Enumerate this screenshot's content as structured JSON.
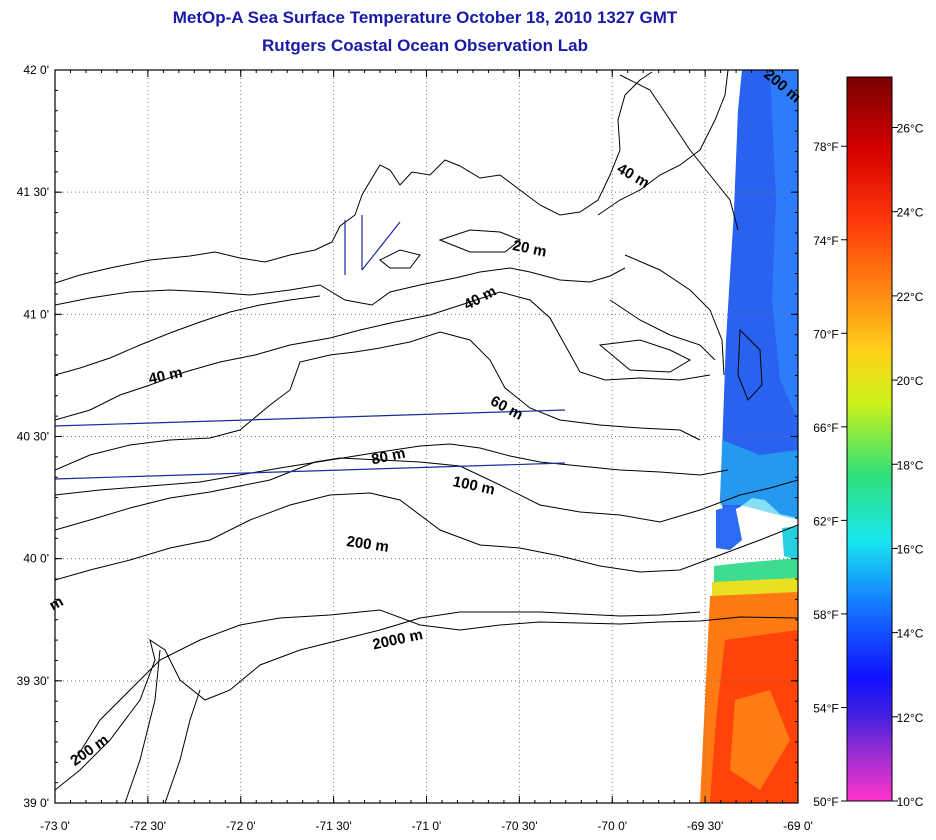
{
  "header": {
    "title": "MetOp-A Sea Surface Temperature October 18, 2010 1327 GMT",
    "subtitle": "Rutgers Coastal Ocean Observation Lab"
  },
  "map": {
    "lon_range": [
      -73.0,
      -69.0
    ],
    "lat_range": [
      39.0,
      42.0
    ],
    "lon_ticks": [
      "-73 0'",
      "-72 30'",
      "-72 0'",
      "-71 30'",
      "-71 0'",
      "-70 30'",
      "-70 0'",
      "-69 30'",
      "-69 0'"
    ],
    "lat_ticks": [
      "42 0'",
      "41 30'",
      "41 0'",
      "40 30'",
      "40 0'",
      "39 30'",
      "39 0'"
    ],
    "grid": "dotted",
    "contour_labels": [
      {
        "text": "200 m",
        "lon": -69.1,
        "lat": 41.92,
        "rot": 40
      },
      {
        "text": "40 m",
        "lon": -69.9,
        "lat": 41.55,
        "rot": 30
      },
      {
        "text": "20 m",
        "lon": -70.45,
        "lat": 41.25,
        "rot": 12
      },
      {
        "text": "40 m",
        "lon": -70.7,
        "lat": 41.05,
        "rot": -28
      },
      {
        "text": "40 m",
        "lon": -72.4,
        "lat": 40.73,
        "rot": -12
      },
      {
        "text": "60 m",
        "lon": -70.58,
        "lat": 40.6,
        "rot": 28
      },
      {
        "text": "80 m",
        "lon": -71.2,
        "lat": 40.4,
        "rot": -12
      },
      {
        "text": "100 m",
        "lon": -70.75,
        "lat": 40.28,
        "rot": 12
      },
      {
        "text": "200 m",
        "lon": -71.32,
        "lat": 40.04,
        "rot": 8
      },
      {
        "text": "2000 m",
        "lon": -71.15,
        "lat": 39.65,
        "rot": -12
      },
      {
        "text": "200 m",
        "lon": -72.8,
        "lat": 39.2,
        "rot": -35
      },
      {
        "text": "m",
        "lon": -72.98,
        "lat": 39.8,
        "rot": -30
      }
    ]
  },
  "colorbar": {
    "celsius_ticks": [
      "26°C",
      "24°C",
      "22°C",
      "20°C",
      "18°C",
      "16°C",
      "14°C",
      "12°C",
      "10°C"
    ],
    "celsius_values": [
      26,
      24,
      22,
      20,
      18,
      16,
      14,
      12,
      10
    ],
    "fahrenheit_ticks": [
      "78°F",
      "74°F",
      "70°F",
      "66°F",
      "62°F",
      "58°F",
      "54°F",
      "50°F"
    ],
    "fahrenheit_values": [
      78,
      74,
      70,
      66,
      62,
      58,
      54,
      50
    ],
    "range_c": [
      10,
      27.2
    ],
    "colors": [
      "#ff33cc",
      "#7a2db3",
      "#1414ff",
      "#1478ff",
      "#19e6f0",
      "#2fe07a",
      "#ccf21a",
      "#ffd21a",
      "#ff8a14",
      "#ff3a0a",
      "#d40000",
      "#7a0000"
    ]
  }
}
